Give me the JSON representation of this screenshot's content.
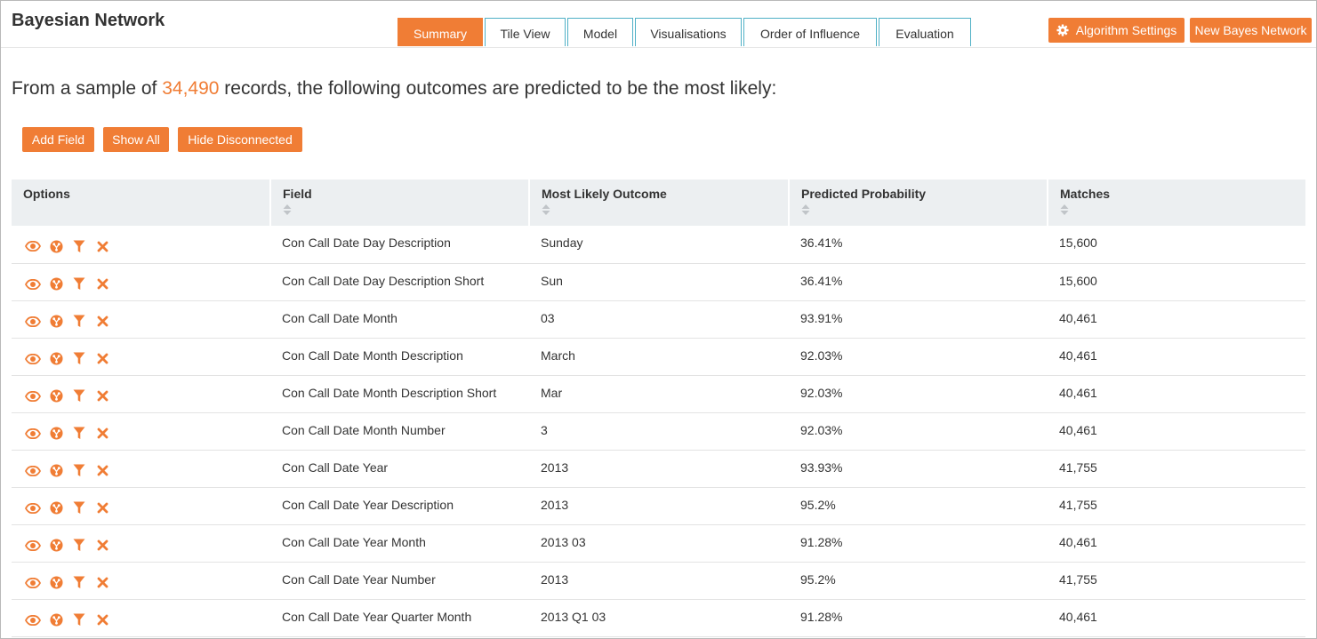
{
  "app": {
    "title": "Bayesian Network"
  },
  "tabs": [
    {
      "label": "Summary",
      "active": true
    },
    {
      "label": "Tile View",
      "active": false
    },
    {
      "label": "Model",
      "active": false
    },
    {
      "label": "Visualisations",
      "active": false
    },
    {
      "label": "Order of Influence",
      "active": false
    },
    {
      "label": "Evaluation",
      "active": false
    }
  ],
  "header_buttons": {
    "algorithm_settings": {
      "label": "Algorithm Settings",
      "icon": "gear-icon"
    },
    "new_network": {
      "label": "New Bayes Network"
    }
  },
  "summary": {
    "prefix": "From a sample of ",
    "count": "34,490",
    "suffix": " records, the following outcomes are predicted to be the most likely:"
  },
  "actions": {
    "add_field": "Add Field",
    "show_all": "Show All",
    "hide_disconnected": "Hide Disconnected"
  },
  "table": {
    "columns": [
      "Options",
      "Field",
      "Most Likely Outcome",
      "Predicted Probability",
      "Matches"
    ],
    "row_icons": [
      "eye-icon",
      "network-icon",
      "filter-icon",
      "close-icon"
    ],
    "rows": [
      {
        "field": "Con Call Date Day Description",
        "outcome": "Sunday",
        "probability": "36.41%",
        "matches": "15,600"
      },
      {
        "field": "Con Call Date Day Description Short",
        "outcome": "Sun",
        "probability": "36.41%",
        "matches": "15,600"
      },
      {
        "field": "Con Call Date Month",
        "outcome": "03",
        "probability": "93.91%",
        "matches": "40,461"
      },
      {
        "field": "Con Call Date Month Description",
        "outcome": "March",
        "probability": "92.03%",
        "matches": "40,461"
      },
      {
        "field": "Con Call Date Month Description Short",
        "outcome": "Mar",
        "probability": "92.03%",
        "matches": "40,461"
      },
      {
        "field": "Con Call Date Month Number",
        "outcome": "3",
        "probability": "92.03%",
        "matches": "40,461"
      },
      {
        "field": "Con Call Date Year",
        "outcome": "2013",
        "probability": "93.93%",
        "matches": "41,755"
      },
      {
        "field": "Con Call Date Year Description",
        "outcome": "2013",
        "probability": "95.2%",
        "matches": "41,755"
      },
      {
        "field": "Con Call Date Year Month",
        "outcome": "2013 03",
        "probability": "91.28%",
        "matches": "40,461"
      },
      {
        "field": "Con Call Date Year Number",
        "outcome": "2013",
        "probability": "95.2%",
        "matches": "41,755"
      },
      {
        "field": "Con Call Date Year Quarter Month",
        "outcome": "2013 Q1 03",
        "probability": "91.28%",
        "matches": "40,461"
      }
    ]
  },
  "colors": {
    "accent": "#f07d35",
    "tab_border": "#4fb0c6",
    "header_bg": "#eceff1"
  }
}
